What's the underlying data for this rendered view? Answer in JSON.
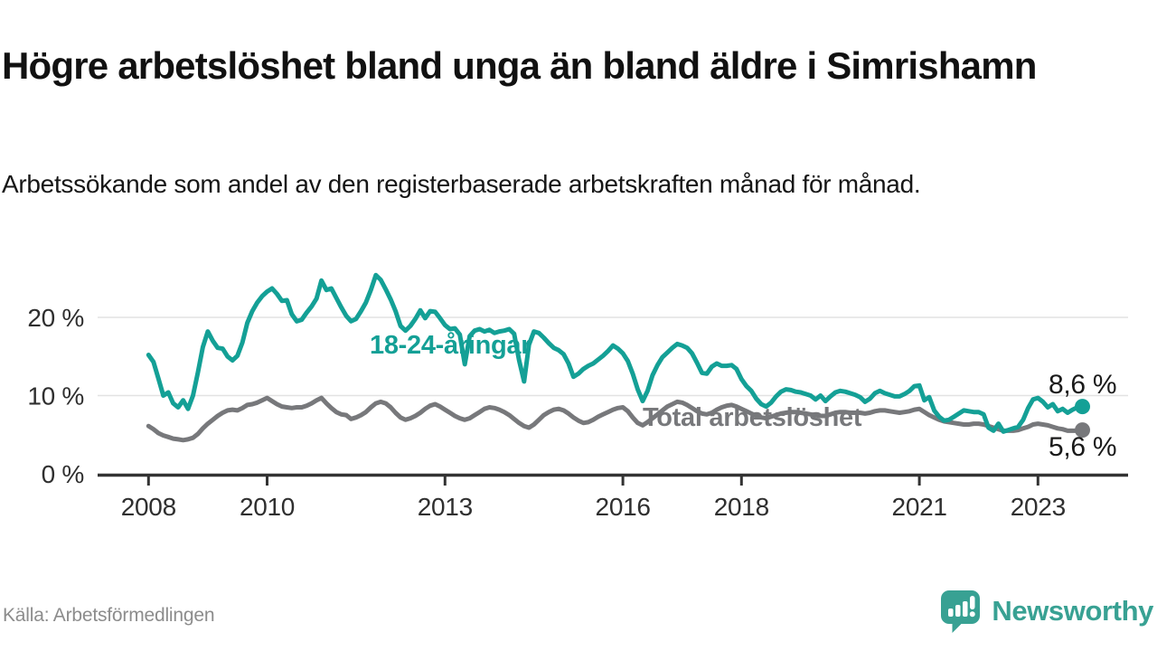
{
  "header": {
    "title": "Högre arbetslöshet bland unga än bland äldre i Simrishamn",
    "subtitle": "Arbetssökande som andel av den registerbaserade arbetskraften månad för månad."
  },
  "footer": {
    "source": "Källa: Arbetsförmedlingen",
    "brand_name": "Newsworthy",
    "brand_color": "#38a193",
    "logo_icon": "speech-bubble-bar-chart-icon"
  },
  "chart_data": {
    "type": "line",
    "x_unit": "year (monthly values)",
    "x_start": 2008.0,
    "x_step": 0.0833333,
    "x_ticks": [
      2008,
      2010,
      2013,
      2016,
      2018,
      2021,
      2023
    ],
    "y_ticks": [
      0,
      10,
      20
    ],
    "y_tick_suffix": " %",
    "ylim": [
      0,
      27
    ],
    "xlim": [
      2007.9,
      2024.3
    ],
    "grid": "horizontal-only",
    "legend": "inline-labels-on-chart",
    "series": [
      {
        "name": "18-24-åringar",
        "color": "#14a096",
        "end_label": "8,6 %",
        "end_value": 8.6,
        "values": [
          15.2,
          14.3,
          12.2,
          10.0,
          10.4,
          9.0,
          8.5,
          9.4,
          8.3,
          10.0,
          13.0,
          16.2,
          18.2,
          17.0,
          16.1,
          16.0,
          15.0,
          14.5,
          15.1,
          16.8,
          19.3,
          20.8,
          21.9,
          22.7,
          23.3,
          23.7,
          23.0,
          22.1,
          22.2,
          20.4,
          19.5,
          19.7,
          20.6,
          21.4,
          22.4,
          24.7,
          23.5,
          23.7,
          22.5,
          21.3,
          20.2,
          19.5,
          19.8,
          20.8,
          21.9,
          23.5,
          25.4,
          24.8,
          23.6,
          22.3,
          20.8,
          18.9,
          18.3,
          18.9,
          19.8,
          20.9,
          19.9,
          20.8,
          20.7,
          19.9,
          19.0,
          18.5,
          18.6,
          17.8,
          14.0,
          17.6,
          18.3,
          18.5,
          18.2,
          18.4,
          18.0,
          18.2,
          18.3,
          18.5,
          17.9,
          14.5,
          11.8,
          16.5,
          18.2,
          18.0,
          17.4,
          16.7,
          16.1,
          15.8,
          15.3,
          14.1,
          12.4,
          12.8,
          13.4,
          13.8,
          14.1,
          14.6,
          15.1,
          15.7,
          16.4,
          16.0,
          15.4,
          14.4,
          12.8,
          10.8,
          9.3,
          10.6,
          12.6,
          13.9,
          14.9,
          15.5,
          16.1,
          16.6,
          16.4,
          16.1,
          15.4,
          14.2,
          12.9,
          12.8,
          13.7,
          14.1,
          13.8,
          13.8,
          13.9,
          13.4,
          12.1,
          11.2,
          10.6,
          9.6,
          8.9,
          8.6,
          9.1,
          9.9,
          10.5,
          10.8,
          10.7,
          10.5,
          10.4,
          10.2,
          10.0,
          9.5,
          10.0,
          9.3,
          9.9,
          10.4,
          10.6,
          10.5,
          10.3,
          10.1,
          9.8,
          9.2,
          9.6,
          10.3,
          10.6,
          10.3,
          10.1,
          9.9,
          9.9,
          10.2,
          10.6,
          11.2,
          11.3,
          9.4,
          9.8,
          8.1,
          7.3,
          6.8,
          6.9,
          7.3,
          7.7,
          8.1,
          8.0,
          7.9,
          7.9,
          7.6,
          5.9,
          5.5,
          6.4,
          5.4,
          5.6,
          5.8,
          6.0,
          6.9,
          8.4,
          9.5,
          9.7,
          9.2,
          8.5,
          8.9,
          8.0,
          8.3,
          7.8,
          8.2,
          8.5,
          8.6
        ]
      },
      {
        "name": "Total arbetslöshet",
        "color": "#77787b",
        "end_label": "5,6 %",
        "end_value": 5.6,
        "values": [
          6.1,
          5.7,
          5.2,
          4.9,
          4.7,
          4.5,
          4.4,
          4.3,
          4.4,
          4.6,
          5.1,
          5.8,
          6.4,
          6.9,
          7.4,
          7.8,
          8.1,
          8.2,
          8.1,
          8.4,
          8.8,
          8.9,
          9.1,
          9.4,
          9.7,
          9.3,
          8.9,
          8.6,
          8.5,
          8.4,
          8.5,
          8.5,
          8.7,
          9.0,
          9.4,
          9.7,
          9.0,
          8.4,
          7.9,
          7.6,
          7.5,
          7.0,
          7.2,
          7.5,
          7.9,
          8.5,
          9.0,
          9.2,
          9.0,
          8.5,
          7.8,
          7.2,
          6.9,
          7.1,
          7.4,
          7.8,
          8.3,
          8.7,
          8.9,
          8.6,
          8.2,
          7.8,
          7.4,
          7.1,
          6.9,
          7.1,
          7.5,
          7.9,
          8.3,
          8.5,
          8.4,
          8.2,
          7.9,
          7.5,
          7.0,
          6.5,
          6.1,
          5.9,
          6.3,
          6.9,
          7.5,
          7.9,
          8.2,
          8.3,
          8.1,
          7.7,
          7.2,
          6.8,
          6.5,
          6.6,
          6.9,
          7.3,
          7.6,
          7.9,
          8.2,
          8.4,
          8.5,
          8.0,
          7.2,
          6.5,
          6.2,
          6.6,
          7.1,
          7.6,
          8.1,
          8.6,
          8.9,
          9.2,
          9.1,
          8.8,
          8.4,
          8.0,
          7.7,
          7.6,
          7.8,
          8.2,
          8.5,
          8.7,
          8.8,
          8.6,
          8.3,
          8.0,
          7.7,
          7.4,
          7.2,
          7.1,
          7.3,
          7.5,
          7.7,
          7.8,
          7.9,
          7.9,
          7.8,
          7.7,
          7.6,
          7.5,
          7.4,
          7.4,
          7.6,
          7.8,
          7.9,
          7.9,
          7.8,
          7.8,
          7.8,
          7.7,
          7.8,
          8.0,
          8.1,
          8.1,
          8.0,
          7.9,
          7.8,
          7.9,
          8.0,
          8.2,
          8.3,
          7.9,
          7.5,
          7.2,
          6.9,
          6.7,
          6.6,
          6.5,
          6.4,
          6.3,
          6.3,
          6.4,
          6.4,
          6.3,
          6.1,
          5.9,
          5.7,
          5.5,
          5.5,
          5.5,
          5.6,
          5.8,
          6.0,
          6.3,
          6.4,
          6.3,
          6.2,
          6.0,
          5.8,
          5.7,
          5.5,
          5.5,
          5.5,
          5.6
        ]
      }
    ]
  }
}
